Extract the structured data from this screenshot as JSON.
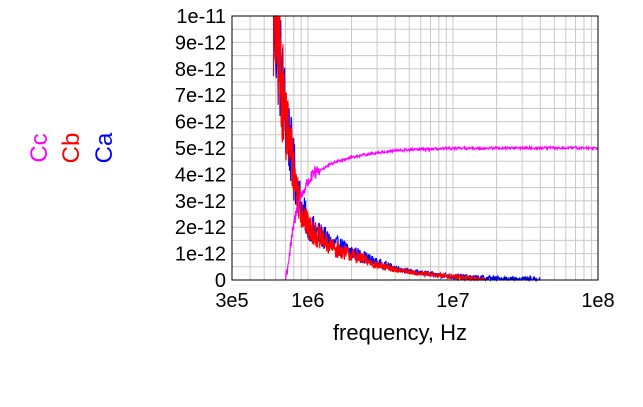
{
  "chart_data": {
    "type": "line",
    "xscale": "log",
    "yscale": "linear",
    "grid": true,
    "xlim": [
      300000,
      100000000
    ],
    "ylim": [
      0,
      1e-11
    ],
    "xlabel": "frequency, Hz",
    "ylabel": "",
    "legend_position": "left, rotated vertical",
    "x_ticks": [
      {
        "value": 300000,
        "label": "3e5"
      },
      {
        "value": 1000000,
        "label": "1e6"
      },
      {
        "value": 10000000,
        "label": "1e7"
      },
      {
        "value": 100000000,
        "label": "1e8"
      }
    ],
    "y_ticks": [
      {
        "value": 0,
        "label": "0"
      },
      {
        "value": 1e-12,
        "label": "1e-12"
      },
      {
        "value": 2e-12,
        "label": "2e-12"
      },
      {
        "value": 3e-12,
        "label": "3e-12"
      },
      {
        "value": 4e-12,
        "label": "4e-12"
      },
      {
        "value": 5e-12,
        "label": "5e-12"
      },
      {
        "value": 6e-12,
        "label": "6e-12"
      },
      {
        "value": 7e-12,
        "label": "7e-12"
      },
      {
        "value": 8e-12,
        "label": "8e-12"
      },
      {
        "value": 9e-12,
        "label": "9e-12"
      },
      {
        "value": 1e-11,
        "label": "1e-11"
      }
    ],
    "series": [
      {
        "name": "Ca",
        "color": "#0000ff",
        "x": [
          580000,
          620000,
          660000,
          700000,
          750000,
          800000,
          850000,
          900000,
          1000000,
          1150000,
          1300000,
          1500000,
          1800000,
          2000000,
          2500000,
          3000000,
          4000000,
          5000000,
          7000000,
          10000000,
          15000000,
          20000000,
          30000000,
          40000000
        ],
        "y": [
          1e-11,
          9e-12,
          7.6e-12,
          6.3e-12,
          5.2e-12,
          4.2e-12,
          3.5e-12,
          2.8e-12,
          2.1e-12,
          1.8e-12,
          1.6e-12,
          1.35e-12,
          1.2e-12,
          1.05e-12,
          8.5e-13,
          6.5e-13,
          4.5e-13,
          3.3e-13,
          2.2e-13,
          1.4e-13,
          8e-14,
          5e-14,
          2e-14,
          0
        ]
      },
      {
        "name": "Cb",
        "color": "#ff0000",
        "x": [
          580000,
          620000,
          660000,
          700000,
          750000,
          800000,
          850000,
          900000,
          1000000,
          1150000,
          1300000,
          1500000,
          1800000,
          2000000,
          2500000,
          3000000,
          4000000,
          5000000,
          7000000,
          10000000,
          14000000,
          17000000
        ],
        "y": [
          1e-11,
          9e-12,
          7.4e-12,
          6.2e-12,
          5.1e-12,
          4.1e-12,
          3.3e-12,
          2.7e-12,
          2e-12,
          1.7e-12,
          1.45e-12,
          1.2e-12,
          1.05e-12,
          9.5e-13,
          7.5e-13,
          5.5e-13,
          4e-13,
          3e-13,
          2e-13,
          1.3e-13,
          5e-14,
          0
        ]
      },
      {
        "name": "Cc",
        "color": "#ff00ff",
        "x": [
          700000,
          750000,
          800000,
          850000,
          900000,
          1000000,
          1100000,
          1200000,
          1400000,
          1600000,
          2000000,
          2500000,
          3000000,
          4000000,
          5000000,
          7000000,
          10000000,
          15000000,
          20000000,
          30000000,
          50000000,
          100000000
        ],
        "y": [
          0,
          1e-12,
          2.1e-12,
          2.8e-12,
          3.2e-12,
          3.7e-12,
          4e-12,
          4.15e-12,
          4.35e-12,
          4.5e-12,
          4.65e-12,
          4.75e-12,
          4.82e-12,
          4.9e-12,
          4.93e-12,
          4.96e-12,
          4.98e-12,
          4.99e-12,
          5e-12,
          5e-12,
          5e-12,
          5e-12
        ]
      }
    ]
  }
}
